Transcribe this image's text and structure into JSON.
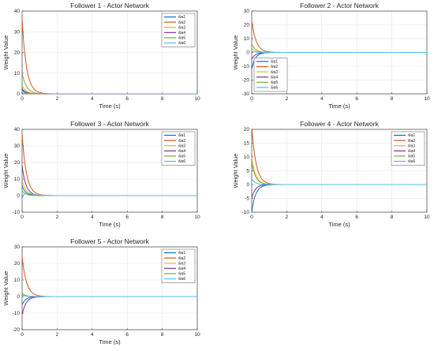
{
  "chart_data": [
    {
      "type": "line",
      "title": "Follower 1 - Actor Network",
      "xlabel": "Time (s)",
      "ylabel": "Weight Value",
      "xlim": [
        0,
        10
      ],
      "ylim": [
        0,
        40
      ],
      "xticks": [
        0,
        2,
        4,
        6,
        8,
        10
      ],
      "yticks": [
        0,
        10,
        20,
        30,
        40
      ],
      "grid": true,
      "legend": "top-right",
      "series": [
        {
          "name": "ŵa1",
          "color": "#0072BD",
          "initial": 2,
          "decay": 5
        },
        {
          "name": "ŵa2",
          "color": "#D95319",
          "initial": 36,
          "decay": 4
        },
        {
          "name": "ŵa3",
          "color": "#EDB120",
          "initial": 4,
          "decay": 4.5
        },
        {
          "name": "ŵa4",
          "color": "#7E2F8E",
          "initial": 2.5,
          "decay": 5
        },
        {
          "name": "ŵa5",
          "color": "#77AC30",
          "initial": 10,
          "decay": 4
        },
        {
          "name": "ŵa6",
          "color": "#4DBEEE",
          "initial": 1,
          "decay": 5
        }
      ]
    },
    {
      "type": "line",
      "title": "Follower 2 - Actor Network",
      "xlabel": "Time (s)",
      "ylabel": "Weight Value",
      "xlim": [
        0,
        10
      ],
      "ylim": [
        -30,
        30
      ],
      "xticks": [
        0,
        2,
        4,
        6,
        8,
        10
      ],
      "yticks": [
        -30,
        -20,
        -10,
        0,
        10,
        20,
        30
      ],
      "grid": true,
      "legend": "bottom-left",
      "series": [
        {
          "name": "ŵa1",
          "color": "#0072BD",
          "initial": -12,
          "decay": 5
        },
        {
          "name": "ŵa2",
          "color": "#D95319",
          "initial": 23,
          "decay": 4
        },
        {
          "name": "ŵa3",
          "color": "#EDB120",
          "initial": 3,
          "decay": 4.5
        },
        {
          "name": "ŵa4",
          "color": "#7E2F8E",
          "initial": -5,
          "decay": 5
        },
        {
          "name": "ŵa5",
          "color": "#77AC30",
          "initial": 6,
          "decay": 4.5
        },
        {
          "name": "ŵa6",
          "color": "#4DBEEE",
          "initial": 1,
          "decay": 5
        }
      ]
    },
    {
      "type": "line",
      "title": "Follower 3 - Actor Network",
      "xlabel": "Time (s)",
      "ylabel": "Weight Value",
      "xlim": [
        0,
        10
      ],
      "ylim": [
        -10,
        40
      ],
      "xticks": [
        0,
        2,
        4,
        6,
        8,
        10
      ],
      "yticks": [
        -10,
        0,
        10,
        20,
        30,
        40
      ],
      "grid": true,
      "legend": "top-right",
      "series": [
        {
          "name": "ŵa1",
          "color": "#0072BD",
          "initial": 6,
          "decay": 5
        },
        {
          "name": "ŵa2",
          "color": "#D95319",
          "initial": 37,
          "decay": 4
        },
        {
          "name": "ŵa3",
          "color": "#EDB120",
          "initial": 9,
          "decay": 4.5
        },
        {
          "name": "ŵa4",
          "color": "#7E2F8E",
          "initial": 18,
          "decay": 4.5
        },
        {
          "name": "ŵa5",
          "color": "#77AC30",
          "initial": 3,
          "decay": 5
        },
        {
          "name": "ŵa6",
          "color": "#4DBEEE",
          "initial": -2,
          "decay": 5,
          "dip": -3
        }
      ]
    },
    {
      "type": "line",
      "title": "Follower 4 - Actor Network",
      "xlabel": "Time (s)",
      "ylabel": "Weight Value",
      "xlim": [
        0,
        10
      ],
      "ylim": [
        -10,
        20
      ],
      "xticks": [
        0,
        2,
        4,
        6,
        8,
        10
      ],
      "yticks": [
        -10,
        -5,
        0,
        5,
        10,
        15,
        20
      ],
      "grid": true,
      "legend": "top-right",
      "series": [
        {
          "name": "ŵa1",
          "color": "#0072BD",
          "initial": -10,
          "decay": 4.5
        },
        {
          "name": "ŵa2",
          "color": "#D95319",
          "initial": 21,
          "decay": 4
        },
        {
          "name": "ŵa3",
          "color": "#EDB120",
          "initial": 10,
          "decay": 4.5
        },
        {
          "name": "ŵa4",
          "color": "#7E2F8E",
          "initial": -5,
          "decay": 5
        },
        {
          "name": "ŵa5",
          "color": "#77AC30",
          "initial": 8,
          "decay": 4.5
        },
        {
          "name": "ŵa6",
          "color": "#4DBEEE",
          "initial": 2,
          "decay": 5
        }
      ]
    },
    {
      "type": "line",
      "title": "Follower 5 - Actor Network",
      "xlabel": "Time (s)",
      "ylabel": "Weight Value",
      "xlim": [
        0,
        10
      ],
      "ylim": [
        -20,
        30
      ],
      "xticks": [
        0,
        2,
        4,
        6,
        8,
        10
      ],
      "yticks": [
        -20,
        -10,
        0,
        10,
        20,
        30
      ],
      "grid": true,
      "legend": "top-right",
      "series": [
        {
          "name": "ŵa1",
          "color": "#0072BD",
          "initial": -5,
          "decay": 5
        },
        {
          "name": "ŵa2",
          "color": "#D95319",
          "initial": 24,
          "decay": 4
        },
        {
          "name": "ŵa3",
          "color": "#EDB120",
          "initial": 1,
          "decay": 5
        },
        {
          "name": "ŵa4",
          "color": "#7E2F8E",
          "initial": -11,
          "decay": 4.5
        },
        {
          "name": "ŵa5",
          "color": "#77AC30",
          "initial": 2,
          "decay": 5
        },
        {
          "name": "ŵa6",
          "color": "#4DBEEE",
          "initial": 1,
          "decay": 5
        }
      ]
    }
  ]
}
